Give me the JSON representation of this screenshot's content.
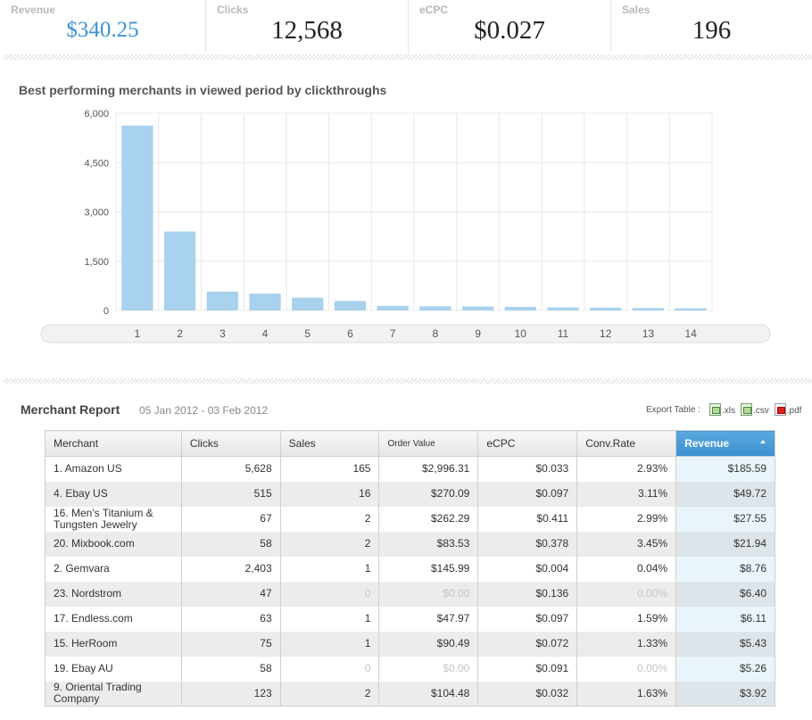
{
  "stats": [
    {
      "label": "Revenue",
      "value": "$340.25"
    },
    {
      "label": "Clicks",
      "value": "12,568"
    },
    {
      "label": "eCPC",
      "value": "$0.027"
    },
    {
      "label": "Sales",
      "value": "196"
    }
  ],
  "chart_title": "Best performing merchants in viewed period by clickthroughs",
  "chart_data": {
    "type": "bar",
    "title": "Best performing merchants in viewed period by clickthroughs",
    "categories": [
      "1",
      "2",
      "3",
      "4",
      "5",
      "6",
      "7",
      "8",
      "9",
      "10",
      "11",
      "12",
      "13",
      "14"
    ],
    "values": [
      5628,
      2403,
      575,
      515,
      390,
      290,
      140,
      130,
      123,
      110,
      95,
      85,
      75,
      67
    ],
    "y_ticks": [
      "0",
      "1,500",
      "3,000",
      "4,500",
      "6,000"
    ],
    "ylim": [
      0,
      6000
    ],
    "grid": true,
    "bar_color": "#a8d2ed"
  },
  "report": {
    "title": "Merchant Report",
    "dates": "05 Jan 2012 - 03 Feb 2012",
    "export_label": "Export Table :",
    "exports": [
      ".xls",
      ".csv",
      ".pdf"
    ],
    "columns": [
      "Merchant",
      "Clicks",
      "Sales",
      "Order Value",
      "eCPC",
      "Conv.Rate",
      "Revenue"
    ],
    "rows": [
      {
        "merchant": "1. Amazon US",
        "clicks": "5,628",
        "sales": "165",
        "order_value": "$2,996.31",
        "ecpc": "$0.033",
        "conv_rate": "2.93%",
        "revenue": "$185.59"
      },
      {
        "merchant": "4. Ebay US",
        "clicks": "515",
        "sales": "16",
        "order_value": "$270.09",
        "ecpc": "$0.097",
        "conv_rate": "3.11%",
        "revenue": "$49.72"
      },
      {
        "merchant": "16. Men's Titanium & Tungsten Jewelry",
        "clicks": "67",
        "sales": "2",
        "order_value": "$262.29",
        "ecpc": "$0.411",
        "conv_rate": "2.99%",
        "revenue": "$27.55"
      },
      {
        "merchant": "20. Mixbook.com",
        "clicks": "58",
        "sales": "2",
        "order_value": "$83.53",
        "ecpc": "$0.378",
        "conv_rate": "3.45%",
        "revenue": "$21.94"
      },
      {
        "merchant": "2. Gemvara",
        "clicks": "2,403",
        "sales": "1",
        "order_value": "$145.99",
        "ecpc": "$0.004",
        "conv_rate": "0.04%",
        "revenue": "$8.76"
      },
      {
        "merchant": "23. Nordstrom",
        "clicks": "47",
        "sales": "0",
        "order_value": "$0.00",
        "ecpc": "$0.136",
        "conv_rate": "0.00%",
        "revenue": "$6.40"
      },
      {
        "merchant": "17. Endless.com",
        "clicks": "63",
        "sales": "1",
        "order_value": "$47.97",
        "ecpc": "$0.097",
        "conv_rate": "1.59%",
        "revenue": "$6.11"
      },
      {
        "merchant": "15. HerRoom",
        "clicks": "75",
        "sales": "1",
        "order_value": "$90.49",
        "ecpc": "$0.072",
        "conv_rate": "1.33%",
        "revenue": "$5.43"
      },
      {
        "merchant": "19. Ebay AU",
        "clicks": "58",
        "sales": "0",
        "order_value": "$0.00",
        "ecpc": "$0.091",
        "conv_rate": "0.00%",
        "revenue": "$5.26"
      },
      {
        "merchant": "9. Oriental Trading Company",
        "clicks": "123",
        "sales": "2",
        "order_value": "$104.48",
        "ecpc": "$0.032",
        "conv_rate": "1.63%",
        "revenue": "$3.92"
      }
    ]
  }
}
